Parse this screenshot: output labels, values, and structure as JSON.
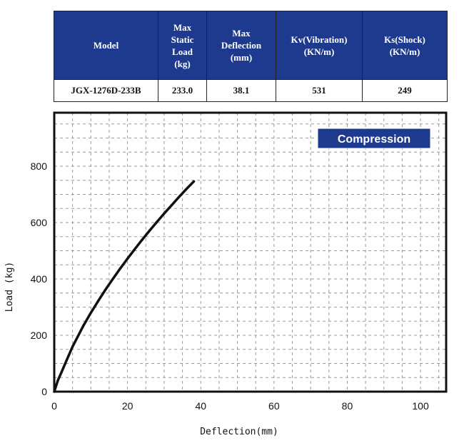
{
  "table": {
    "headers": [
      "Model",
      "Max Static Load (kg)",
      "Max Deflection (mm)",
      "Kv(Vibration) (KN/m)",
      "Ks(Shock) (KN/m)"
    ],
    "row": [
      "JGX-1276D-233B",
      "233.0",
      "38.1",
      "531",
      "249"
    ]
  },
  "colors": {
    "header_bg": "#1d3a8f",
    "badge_bg": "#1d3a8f",
    "curve": "#111111"
  },
  "chart_data": {
    "type": "line",
    "title": "",
    "badge": "Compression",
    "xlabel": "Deflection(mm)",
    "ylabel": "Load (kg)",
    "xlim": [
      0,
      107
    ],
    "ylim": [
      0,
      990
    ],
    "xticks": [
      0,
      20,
      40,
      60,
      80,
      100
    ],
    "yticks": [
      0,
      200,
      400,
      600,
      800
    ],
    "grid": true,
    "series": [
      {
        "x": [
          0,
          1,
          2,
          3,
          4,
          5,
          6,
          8,
          10,
          12,
          14,
          16,
          18,
          20,
          22,
          24,
          26,
          28,
          30,
          32,
          34,
          36,
          38.1
        ],
        "y": [
          0,
          40,
          70,
          100,
          130,
          160,
          185,
          235,
          280,
          322,
          362,
          400,
          437,
          472,
          506,
          539,
          571,
          602,
          632,
          661,
          690,
          718,
          746
        ]
      }
    ]
  }
}
